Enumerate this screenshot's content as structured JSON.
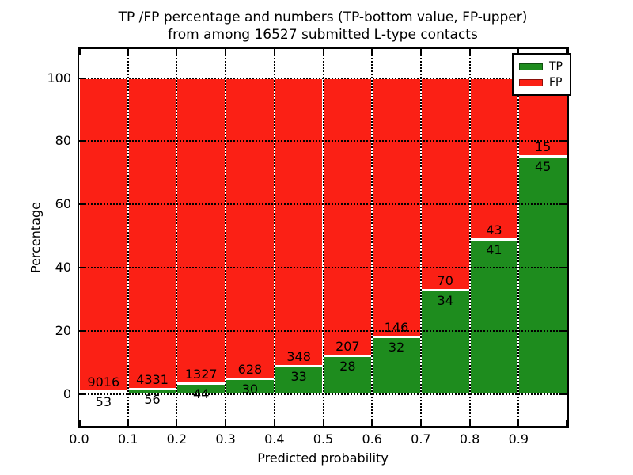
{
  "title": {
    "line1": "TP /FP percentage and numbers (TP-bottom value, FP-upper)",
    "line2": "from among 16527 submitted L-type contacts"
  },
  "axes": {
    "xlabel": "Predicted probability",
    "ylabel": "Percentage",
    "x_tick_labels": [
      "0.0",
      "0.1",
      "0.2",
      "0.3",
      "0.4",
      "0.5",
      "0.6",
      "0.7",
      "0.8",
      "0.9"
    ],
    "y_tick_labels": [
      "0",
      "20",
      "40",
      "60",
      "80",
      "100"
    ]
  },
  "legend": {
    "entries": [
      {
        "label": "TP",
        "color": "#1e8c1e"
      },
      {
        "label": "FP",
        "color": "#fb2015"
      }
    ],
    "position": "upper right"
  },
  "colors": {
    "tp_green": "#1e8c1e",
    "fp_red": "#fb2015",
    "grid": "#000000",
    "bar_edge": "#ffffff"
  },
  "chart_data": {
    "type": "bar",
    "subtype": "stacked_percentage",
    "title": "TP /FP percentage and numbers (TP-bottom value, FP-upper) from among 16527 submitted L-type contacts",
    "xlabel": "Predicted probability",
    "ylabel": "Percentage",
    "total_contacts": 16527,
    "bin_starts": [
      0.0,
      0.1,
      0.2,
      0.3,
      0.4,
      0.5,
      0.6,
      0.7,
      0.8,
      0.9
    ],
    "bin_width": 0.1,
    "series": [
      {
        "name": "TP",
        "stack_position": "bottom",
        "color": "#1e8c1e",
        "counts": [
          53,
          56,
          44,
          30,
          33,
          28,
          32,
          34,
          41,
          45
        ]
      },
      {
        "name": "FP",
        "stack_position": "top",
        "color": "#fb2015",
        "counts": [
          9016,
          4331,
          1327,
          628,
          348,
          207,
          146,
          70,
          43,
          15
        ]
      }
    ],
    "tp_percent_of_bin": [
      0.58,
      1.28,
      3.21,
      4.56,
      8.66,
      11.91,
      17.98,
      32.69,
      48.81,
      75.0
    ],
    "bars_stack_to": 100,
    "xlim": [
      0.0,
      1.0
    ],
    "ylim": [
      -10.7,
      109.7
    ],
    "x_ticks": [
      0.0,
      0.1,
      0.2,
      0.3,
      0.4,
      0.5,
      0.6,
      0.7,
      0.8,
      0.9
    ],
    "y_ticks": [
      0,
      20,
      40,
      60,
      80,
      100
    ],
    "grid": "dotted black, both axes",
    "legend_position": "upper right"
  }
}
